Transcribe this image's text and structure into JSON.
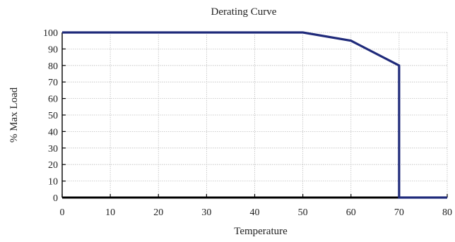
{
  "chart_data": {
    "type": "line",
    "title": "Derating Curve",
    "xlabel": "Temperature",
    "ylabel": "% Max Load",
    "xlim": [
      0,
      80
    ],
    "ylim": [
      0,
      100
    ],
    "x_ticks": [
      0,
      10,
      20,
      30,
      40,
      50,
      60,
      70,
      80
    ],
    "y_ticks": [
      0,
      10,
      20,
      30,
      40,
      50,
      60,
      70,
      80,
      90,
      100
    ],
    "grid": true,
    "legend": "none",
    "series": [
      {
        "color": "#1f2a7a",
        "points": [
          {
            "x": 0,
            "y": 100
          },
          {
            "x": 50,
            "y": 100
          },
          {
            "x": 60,
            "y": 95
          },
          {
            "x": 70,
            "y": 80
          },
          {
            "x": 70,
            "y": 0
          },
          {
            "x": 80,
            "y": 0
          }
        ]
      }
    ]
  }
}
